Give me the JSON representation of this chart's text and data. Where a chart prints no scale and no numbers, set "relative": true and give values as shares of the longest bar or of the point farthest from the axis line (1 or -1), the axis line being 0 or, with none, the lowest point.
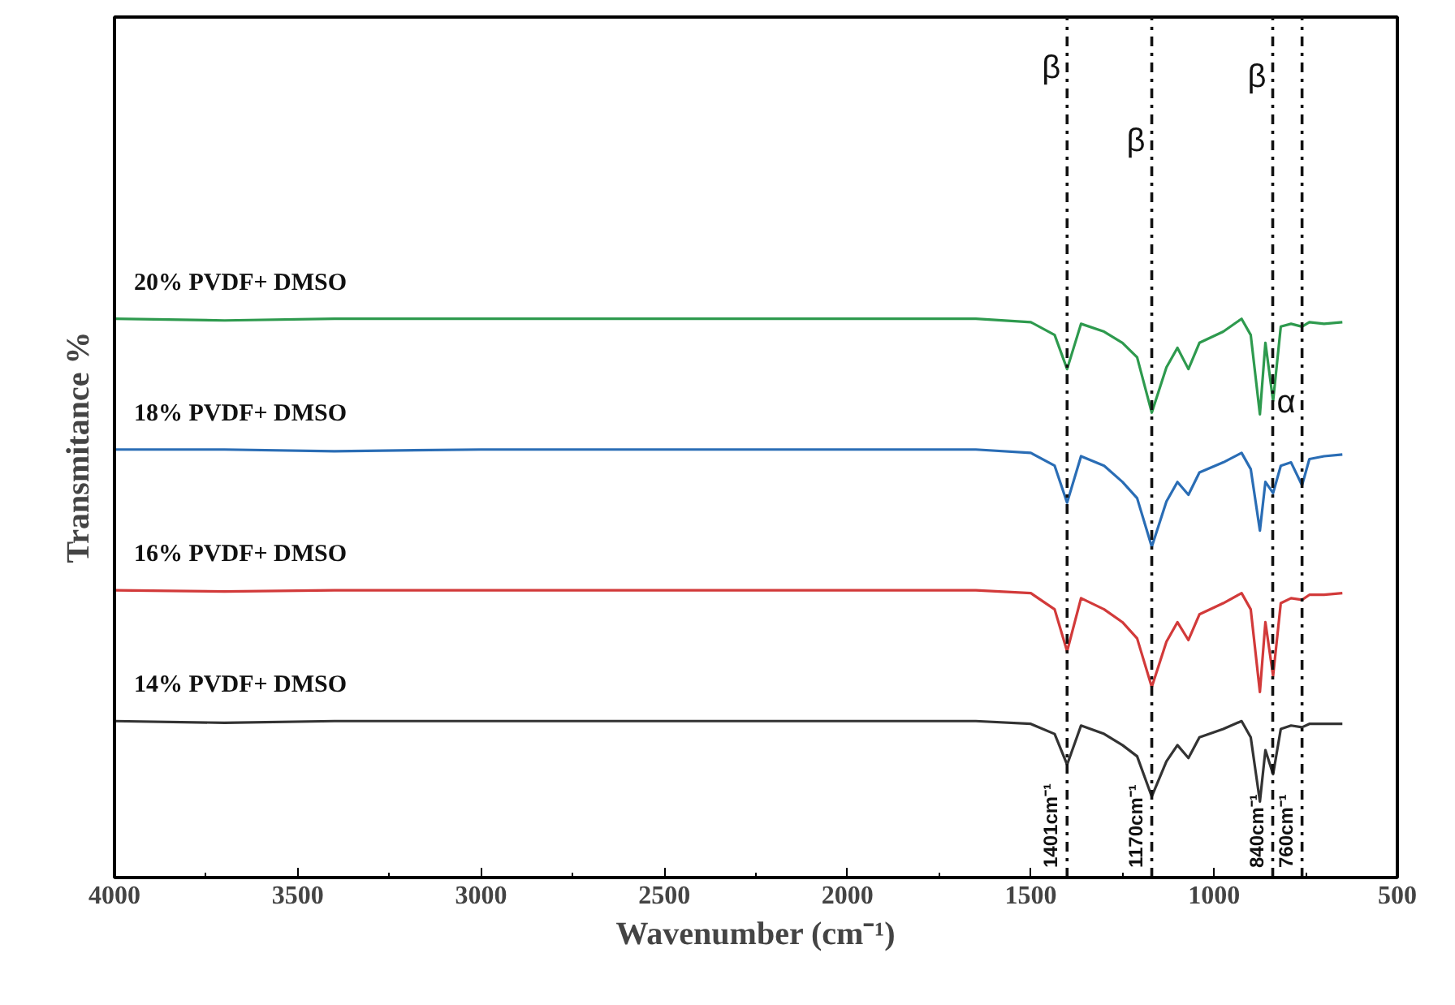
{
  "chart_data": {
    "type": "line",
    "relative": true,
    "xlabel": "Wavenumber (cm⁻¹)",
    "ylabel": "Transmitance %",
    "xlim": [
      4000,
      500
    ],
    "xticks": [
      4000,
      3500,
      3000,
      2500,
      2000,
      1500,
      1000,
      500
    ],
    "grid": false,
    "x": [
      4000,
      3700,
      3400,
      3000,
      2600,
      2200,
      1800,
      1650,
      1500,
      1435,
      1401,
      1363,
      1300,
      1250,
      1210,
      1170,
      1130,
      1100,
      1070,
      1040,
      975,
      925,
      900,
      875,
      860,
      839,
      818,
      790,
      760,
      740,
      700,
      650
    ],
    "series": [
      {
        "name": "20% PVDF+ DMSO",
        "color": "#2e9a4e",
        "values": [
          1.0,
          0.997,
          1.0,
          1.0,
          1.0,
          1.0,
          1.0,
          1.0,
          0.994,
          0.971,
          0.91,
          0.991,
          0.977,
          0.957,
          0.931,
          0.832,
          0.913,
          0.948,
          0.91,
          0.957,
          0.977,
          1.0,
          0.971,
          0.829,
          0.957,
          0.853,
          0.986,
          0.991,
          0.986,
          0.994,
          0.991,
          0.994
        ]
      },
      {
        "name": "18% PVDF+ DMSO",
        "color": "#2a6db5",
        "values": [
          0.766,
          0.766,
          0.763,
          0.766,
          0.766,
          0.766,
          0.766,
          0.766,
          0.76,
          0.737,
          0.671,
          0.754,
          0.737,
          0.708,
          0.679,
          0.592,
          0.673,
          0.708,
          0.685,
          0.725,
          0.743,
          0.76,
          0.731,
          0.621,
          0.708,
          0.688,
          0.737,
          0.743,
          0.702,
          0.749,
          0.754,
          0.757
        ]
      },
      {
        "name": "16% PVDF+ DMSO",
        "color": "#d23a3a",
        "values": [
          0.514,
          0.512,
          0.514,
          0.514,
          0.514,
          0.514,
          0.514,
          0.514,
          0.509,
          0.48,
          0.405,
          0.5,
          0.48,
          0.457,
          0.428,
          0.341,
          0.422,
          0.457,
          0.425,
          0.471,
          0.491,
          0.509,
          0.48,
          0.332,
          0.457,
          0.361,
          0.491,
          0.5,
          0.497,
          0.506,
          0.506,
          0.509
        ]
      },
      {
        "name": "14% PVDF+ DMSO",
        "color": "#333333",
        "values": [
          0.28,
          0.277,
          0.28,
          0.28,
          0.28,
          0.28,
          0.28,
          0.28,
          0.275,
          0.257,
          0.202,
          0.272,
          0.257,
          0.237,
          0.217,
          0.145,
          0.208,
          0.237,
          0.214,
          0.251,
          0.266,
          0.28,
          0.251,
          0.136,
          0.228,
          0.185,
          0.266,
          0.272,
          0.269,
          0.275,
          0.275,
          0.275
        ]
      }
    ],
    "ref_lines": [
      {
        "axis": "x",
        "value": 1401,
        "label": "1401cm⁻¹",
        "color": "#111111",
        "line_style": "dashdot"
      },
      {
        "axis": "x",
        "value": 1170,
        "label": "1170cm⁻¹",
        "color": "#111111",
        "line_style": "dashdot"
      },
      {
        "axis": "x",
        "value": 840,
        "label": "840cm⁻¹",
        "color": "#111111",
        "line_style": "dashdot"
      },
      {
        "axis": "x",
        "value": 760,
        "label": "760cm⁻¹",
        "color": "#111111",
        "line_style": "dashdot"
      }
    ],
    "annotations": [
      {
        "text": "β",
        "x": 1401,
        "y": 1.416
      },
      {
        "text": "β",
        "x": 1170,
        "y": 1.286
      },
      {
        "text": "β",
        "x": 840,
        "y": 1.4
      },
      {
        "text": "α",
        "x": 760,
        "y": 0.818
      }
    ]
  }
}
